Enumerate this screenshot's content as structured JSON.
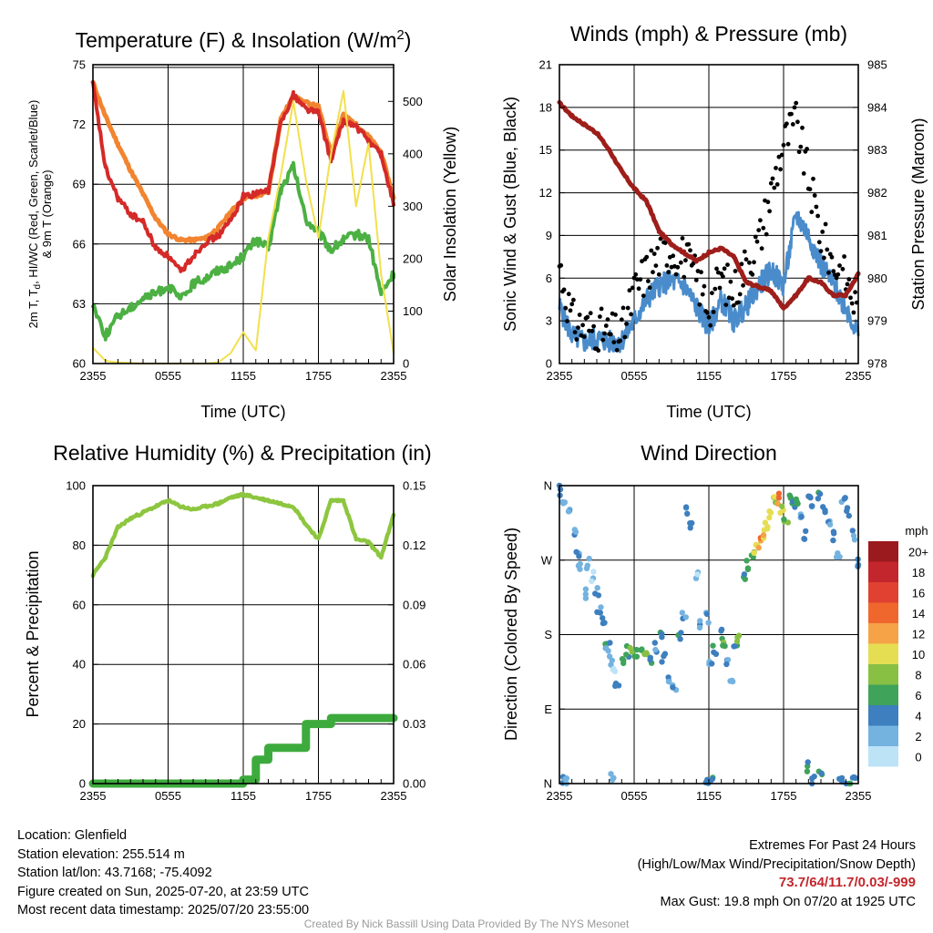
{
  "chart_data": [
    {
      "id": "temperature",
      "type": "line",
      "title": "Temperature (F) & Insolation (W/m",
      "title_sup": "2",
      "title_end": ")",
      "xlabel": "Time (UTC)",
      "ylabel_line1": "2m T, T",
      "ylabel_sub": "d",
      "ylabel_line1b": ", HI/WC (Red, Green, Scarlet/Blue)",
      "ylabel_line2": "& 9m T (Orange)",
      "y2label": "Solar Insolation (Yellow)",
      "xticks": [
        "2355",
        "0555",
        "1155",
        "1755",
        "2355"
      ],
      "x": [
        0,
        1,
        2,
        3,
        4,
        5,
        6,
        7,
        8,
        9,
        10,
        11,
        12,
        13,
        14,
        15,
        16,
        17,
        18,
        19,
        20,
        21,
        22,
        23,
        24
      ],
      "ylim": [
        60,
        75
      ],
      "yticks": [
        "60",
        "63",
        "66",
        "69",
        "72",
        "75"
      ],
      "y2lim": [
        0,
        570
      ],
      "y2ticks": [
        "0",
        "100",
        "200",
        "300",
        "400",
        "500"
      ],
      "series": [
        {
          "color": "#f28430",
          "axis": "left",
          "values": [
            74.1,
            72.4,
            71.0,
            69.7,
            68.5,
            67.3,
            66.5,
            66.2,
            66.2,
            66.3,
            66.8,
            67.6,
            68.3,
            68.4,
            68.6,
            72.3,
            73.4,
            73.1,
            72.9,
            70.5,
            72.5,
            72.0,
            71.4,
            70.6,
            68.3
          ]
        },
        {
          "color": "#d42a28",
          "axis": "left",
          "values": [
            74.0,
            69.8,
            68.3,
            67.5,
            67.1,
            65.8,
            65.4,
            64.6,
            65.4,
            66.1,
            66.4,
            67.2,
            68.4,
            68.5,
            68.7,
            72.1,
            73.5,
            72.8,
            72.6,
            70.2,
            72.2,
            71.9,
            71.2,
            70.5,
            68.0
          ]
        },
        {
          "color": "#4cb043",
          "axis": "left",
          "values": [
            63.0,
            61.4,
            62.4,
            62.8,
            63.3,
            63.5,
            63.9,
            63.2,
            64.0,
            64.3,
            64.7,
            64.9,
            65.4,
            66.2,
            65.8,
            68.7,
            69.9,
            67.2,
            66.6,
            65.7,
            66.2,
            66.5,
            66.3,
            63.5,
            64.5
          ]
        },
        {
          "color": "#f2e04c",
          "axis": "right",
          "values": [
            30,
            5,
            2,
            1,
            0,
            0,
            0,
            0,
            0,
            0,
            2,
            20,
            60,
            25,
            240,
            360,
            500,
            350,
            240,
            400,
            520,
            300,
            420,
            170,
            20
          ]
        }
      ]
    },
    {
      "id": "winds",
      "type": "line",
      "title": "Winds (mph) & Pressure (mb)",
      "xlabel": "Time (UTC)",
      "ylabel": "Sonic Wind & Gust (Blue, Black)",
      "y2label": "Station Pressure (Maroon)",
      "xticks": [
        "2355",
        "0555",
        "1155",
        "1755",
        "2355"
      ],
      "x": [
        0,
        1,
        2,
        3,
        4,
        5,
        6,
        7,
        8,
        9,
        10,
        11,
        12,
        13,
        14,
        15,
        16,
        17,
        18,
        19,
        20,
        21,
        22,
        23,
        24
      ],
      "ylim": [
        0,
        21
      ],
      "yticks": [
        "0",
        "3",
        "6",
        "9",
        "12",
        "15",
        "18",
        "21"
      ],
      "y2lim": [
        978,
        985
      ],
      "y2ticks": [
        "978",
        "979",
        "980",
        "981",
        "982",
        "983",
        "984",
        "985"
      ],
      "series": [
        {
          "color": "#4a8ccb",
          "axis": "left",
          "type": "line",
          "values": [
            4.0,
            2.0,
            1.5,
            1.8,
            1.5,
            1.6,
            3.0,
            4.5,
            5.5,
            5.8,
            5.5,
            4.0,
            2.5,
            4.5,
            3.0,
            4.0,
            5.5,
            6.5,
            5.5,
            10.5,
            9.0,
            7.0,
            5.5,
            4.0,
            2.0
          ]
        },
        {
          "color": "#000000",
          "axis": "left",
          "type": "scatter",
          "values": [
            7.0,
            3.0,
            2.5,
            2.5,
            2.0,
            2.0,
            5.0,
            6.5,
            7.5,
            8.0,
            7.5,
            6.0,
            4.0,
            6.0,
            5.0,
            7.0,
            8.5,
            12.0,
            15.5,
            17.0,
            13.0,
            9.0,
            7.0,
            6.0,
            3.5
          ]
        },
        {
          "color": "#9d1e1a",
          "axis": "right",
          "type": "line",
          "values": [
            984.1,
            983.8,
            983.6,
            983.4,
            983.0,
            982.5,
            982.1,
            981.8,
            981.1,
            980.8,
            980.6,
            980.4,
            980.6,
            980.7,
            980.5,
            979.9,
            979.8,
            979.7,
            979.3,
            979.6,
            980.0,
            979.9,
            979.6,
            979.6,
            980.1
          ]
        }
      ]
    },
    {
      "id": "humidity",
      "type": "line",
      "title": "Relative Humidity (%) & Precipitation (in)",
      "ylabel": "Percent & Precipitation",
      "xticks": [
        "2355",
        "0555",
        "1155",
        "1755",
        "2355"
      ],
      "x": [
        0,
        1,
        2,
        3,
        4,
        5,
        6,
        7,
        8,
        9,
        10,
        11,
        12,
        13,
        14,
        15,
        16,
        17,
        18,
        19,
        20,
        21,
        22,
        23,
        24
      ],
      "ylim": [
        0,
        100
      ],
      "yticks": [
        "0",
        "20",
        "40",
        "60",
        "80",
        "100"
      ],
      "y2lim": [
        0,
        0.15
      ],
      "y2ticks": [
        "0.00",
        "0.03",
        "0.06",
        "0.09",
        "0.12",
        "0.15"
      ],
      "series": [
        {
          "color": "#8dc63f",
          "axis": "left",
          "type": "line",
          "values": [
            70,
            76,
            86,
            89,
            91,
            93,
            95,
            93,
            92,
            93,
            94,
            96,
            97,
            96,
            95,
            94,
            93,
            87,
            82,
            95,
            95,
            82,
            81,
            76,
            90
          ]
        },
        {
          "color": "#3daa3d",
          "axis": "right",
          "type": "step",
          "values": [
            0,
            0,
            0,
            0,
            0,
            0,
            0,
            0,
            0,
            0,
            0,
            0,
            0.002,
            0.012,
            0.018,
            0.018,
            0.018,
            0.03,
            0.03,
            0.033,
            0.033,
            0.033,
            0.033,
            0.033,
            0.033
          ]
        }
      ]
    },
    {
      "id": "direction",
      "type": "scatter",
      "title": "Wind Direction",
      "ylabel": "Direction (Colored By Speed)",
      "xticks": [
        "2355",
        "0555",
        "1155",
        "1755",
        "2355"
      ],
      "yticks": [
        "N",
        "E",
        "S",
        "W",
        "N"
      ],
      "ylim": [
        0,
        360
      ],
      "colorbar_unit": "mph",
      "colorbar_labels": [
        "20+",
        "18",
        "16",
        "14",
        "12",
        "10",
        "8",
        "6",
        "4",
        "2",
        "0"
      ],
      "colorbar_colors": [
        "#9b1a1d",
        "#c3262c",
        "#e04131",
        "#f0672e",
        "#f6a247",
        "#e6de52",
        "#88c044",
        "#3fa35a",
        "#3d7fbf",
        "#74b3e0",
        "#bde3f7"
      ],
      "points": [
        [
          0.1,
          355,
          3
        ],
        [
          0.4,
          345,
          2
        ],
        [
          0.8,
          335,
          2
        ],
        [
          1.2,
          300,
          2
        ],
        [
          1.5,
          280,
          3
        ],
        [
          1.7,
          260,
          2
        ],
        [
          2.0,
          230,
          1
        ],
        [
          2.3,
          265,
          2
        ],
        [
          2.6,
          250,
          1
        ],
        [
          3.0,
          230,
          2
        ],
        [
          3.2,
          210,
          3
        ],
        [
          3.5,
          195,
          4
        ],
        [
          3.7,
          170,
          4
        ],
        [
          3.9,
          165,
          3
        ],
        [
          4.1,
          150,
          2
        ],
        [
          4.3,
          140,
          1
        ],
        [
          4.6,
          120,
          4
        ],
        [
          5.0,
          150,
          6
        ],
        [
          5.4,
          160,
          5
        ],
        [
          5.8,
          158,
          6
        ],
        [
          6.2,
          155,
          5
        ],
        [
          6.6,
          160,
          6
        ],
        [
          7.0,
          154,
          7
        ],
        [
          7.4,
          150,
          5
        ],
        [
          7.7,
          165,
          3
        ],
        [
          8.1,
          180,
          4
        ],
        [
          8.4,
          150,
          3
        ],
        [
          8.8,
          130,
          2
        ],
        [
          9.2,
          120,
          3
        ],
        [
          9.6,
          180,
          4
        ],
        [
          10.0,
          200,
          2
        ],
        [
          10.3,
          330,
          2
        ],
        [
          10.6,
          310,
          3
        ],
        [
          11.0,
          250,
          1
        ],
        [
          11.4,
          195,
          3
        ],
        [
          11.8,
          200,
          2
        ],
        [
          12.2,
          150,
          3
        ],
        [
          12.5,
          160,
          4
        ],
        [
          12.9,
          180,
          4
        ],
        [
          13.2,
          165,
          6
        ],
        [
          13.5,
          150,
          3
        ],
        [
          13.8,
          120,
          2
        ],
        [
          14.1,
          160,
          4
        ],
        [
          14.4,
          172,
          7
        ],
        [
          14.8,
          250,
          4
        ],
        [
          15.2,
          265,
          6
        ],
        [
          15.5,
          275,
          6
        ],
        [
          15.8,
          285,
          9
        ],
        [
          16.1,
          290,
          12
        ],
        [
          16.4,
          300,
          10
        ],
        [
          16.7,
          310,
          9
        ],
        [
          17.0,
          325,
          10
        ],
        [
          17.3,
          340,
          9
        ],
        [
          17.6,
          345,
          12
        ],
        [
          17.9,
          330,
          8
        ],
        [
          18.2,
          320,
          7
        ],
        [
          18.5,
          345,
          5
        ],
        [
          18.8,
          335,
          4
        ],
        [
          19.1,
          340,
          5
        ],
        [
          19.4,
          325,
          3
        ],
        [
          19.7,
          300,
          4
        ],
        [
          20.0,
          345,
          4
        ],
        [
          20.4,
          330,
          3
        ],
        [
          20.8,
          345,
          4
        ],
        [
          21.2,
          330,
          3
        ],
        [
          21.6,
          320,
          2
        ],
        [
          22.0,
          300,
          2
        ],
        [
          22.4,
          280,
          3
        ],
        [
          22.8,
          345,
          2
        ],
        [
          23.2,
          330,
          3
        ],
        [
          23.6,
          300,
          2
        ],
        [
          24.0,
          265,
          3
        ],
        [
          0.2,
          5,
          4
        ],
        [
          0.6,
          2,
          2
        ],
        [
          4.2,
          8,
          2
        ],
        [
          11.8,
          5,
          3
        ],
        [
          12.3,
          3,
          4
        ],
        [
          20.0,
          20,
          4
        ],
        [
          20.4,
          5,
          3
        ],
        [
          21.0,
          10,
          5
        ],
        [
          22.6,
          5,
          4
        ],
        [
          23.2,
          2,
          5
        ],
        [
          23.7,
          8,
          3
        ]
      ]
    }
  ],
  "info": {
    "location": "Location: Glenfield",
    "elevation": "Station elevation: 255.514 m",
    "latlon": "Station lat/lon: 43.7168; -75.4092",
    "created": "Figure created on Sun, 2025-07-20, at 23:59 UTC",
    "recent": "Most recent data timestamp: 2025/07/20 23:55:00"
  },
  "extremes": {
    "title": "Extremes For Past 24 Hours",
    "subtitle": "(High/Low/Max Wind/Precipitation/Snow Depth)",
    "values": "73.7/64/11.7/0.03/-999",
    "gust": "Max Gust: 19.8 mph On 07/20 at 1925 UTC"
  },
  "credit": "Created By Nick Bassill Using Data Provided By The NYS Mesonet"
}
